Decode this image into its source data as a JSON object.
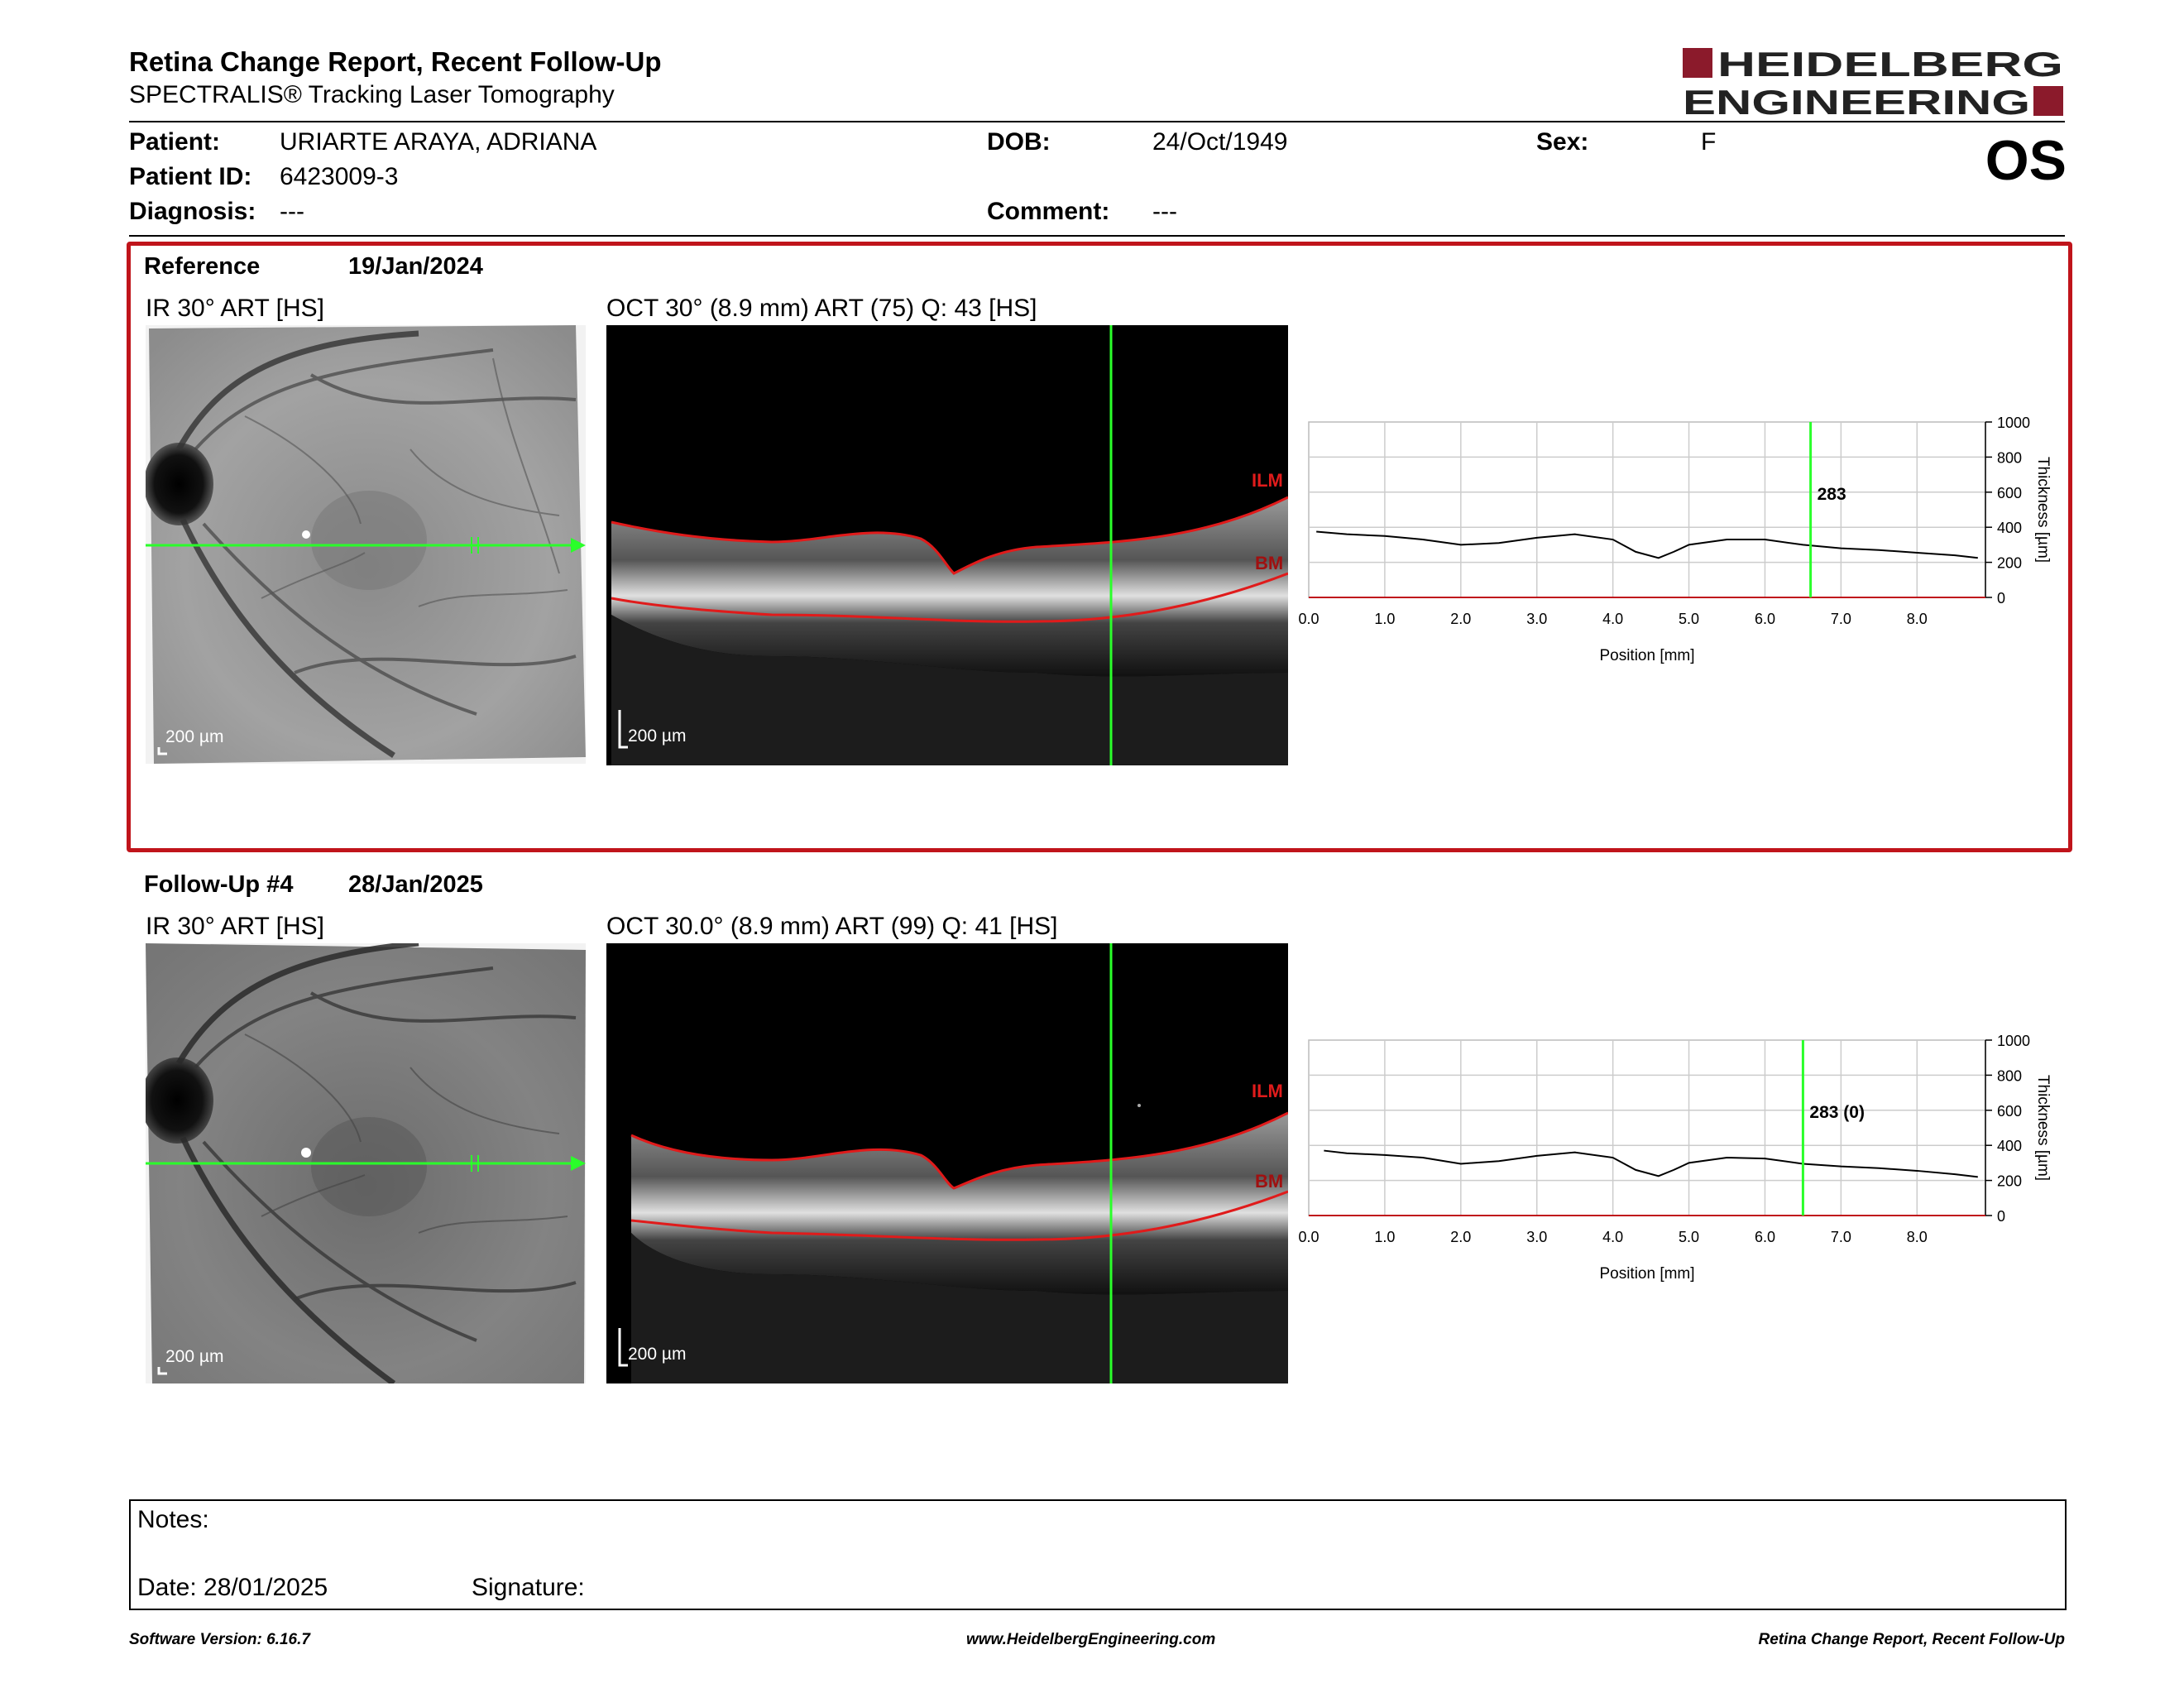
{
  "header": {
    "title": "Retina Change Report, Recent Follow-Up",
    "subtitle": "SPECTRALIS® Tracking Laser Tomography",
    "logo_line1": "HEIDELBERG",
    "logo_line2": "ENGINEERING",
    "brand_color": "#8b1a2b"
  },
  "patient": {
    "patient_label": "Patient:",
    "patient_value": "URIARTE ARAYA, ADRIANA",
    "id_label": "Patient ID:",
    "id_value": "6423009-3",
    "diagnosis_label": "Diagnosis:",
    "diagnosis_value": "---",
    "dob_label": "DOB:",
    "dob_value": "24/Oct/1949",
    "comment_label": "Comment:",
    "comment_value": "---",
    "sex_label": "Sex:",
    "sex_value": "F",
    "eye": "OS"
  },
  "reference": {
    "label": "Reference",
    "date": "19/Jan/2024",
    "ir_title": "IR 30° ART [HS]",
    "oct_title": "OCT 30° (8.9 mm) ART (75) Q: 43 [HS]",
    "scale": "200 µm",
    "ilm": "ILM",
    "bm": "BM",
    "readout": "283"
  },
  "followup": {
    "label": "Follow-Up #4",
    "date": "28/Jan/2025",
    "ir_title": "IR 30° ART [HS]",
    "oct_title": "OCT 30.0° (8.9 mm) ART (99) Q: 41 [HS]",
    "scale": "200 µm",
    "ilm": "ILM",
    "bm": "BM",
    "readout": "283 (0)"
  },
  "chart_data": [
    {
      "type": "line",
      "xlabel": "Position [mm]",
      "ylabel": "Thickness [µm]",
      "xlim": [
        0,
        8.9
      ],
      "ylim": [
        0,
        1000
      ],
      "x_ticks": [
        "0.0",
        "1.0",
        "2.0",
        "3.0",
        "4.0",
        "5.0",
        "6.0",
        "7.0",
        "8.0"
      ],
      "y_ticks": [
        "0",
        "200",
        "400",
        "600",
        "800",
        "1000"
      ],
      "cursor_x": 6.6,
      "cursor_label": "283",
      "x": [
        0.1,
        0.5,
        1.0,
        1.5,
        2.0,
        2.5,
        3.0,
        3.5,
        4.0,
        4.3,
        4.6,
        4.8,
        5.0,
        5.5,
        6.0,
        6.5,
        7.0,
        7.5,
        8.0,
        8.5,
        8.8
      ],
      "values": [
        375,
        360,
        350,
        330,
        300,
        310,
        340,
        360,
        330,
        260,
        225,
        260,
        300,
        330,
        330,
        300,
        280,
        270,
        255,
        240,
        225
      ]
    },
    {
      "type": "line",
      "xlabel": "Position [mm]",
      "ylabel": "Thickness [µm]",
      "xlim": [
        0,
        8.9
      ],
      "ylim": [
        0,
        1000
      ],
      "x_ticks": [
        "0.0",
        "1.0",
        "2.0",
        "3.0",
        "4.0",
        "5.0",
        "6.0",
        "7.0",
        "8.0"
      ],
      "y_ticks": [
        "0",
        "200",
        "400",
        "600",
        "800",
        "1000"
      ],
      "cursor_x": 6.5,
      "cursor_label": "283 (0)",
      "x": [
        0.2,
        0.5,
        1.0,
        1.5,
        2.0,
        2.5,
        3.0,
        3.5,
        4.0,
        4.3,
        4.6,
        4.8,
        5.0,
        5.5,
        6.0,
        6.5,
        7.0,
        7.5,
        8.0,
        8.5,
        8.8
      ],
      "values": [
        370,
        355,
        345,
        330,
        295,
        310,
        340,
        360,
        330,
        260,
        225,
        260,
        300,
        330,
        325,
        295,
        280,
        270,
        255,
        235,
        220
      ]
    }
  ],
  "notes": {
    "notes_label": "Notes:",
    "date_label": "Date: 28/01/2025",
    "signature_label": "Signature:"
  },
  "footer": {
    "left": "Software Version: 6.16.7",
    "center": "www.HeidelbergEngineering.com",
    "right": "Retina Change Report, Recent Follow-Up"
  }
}
